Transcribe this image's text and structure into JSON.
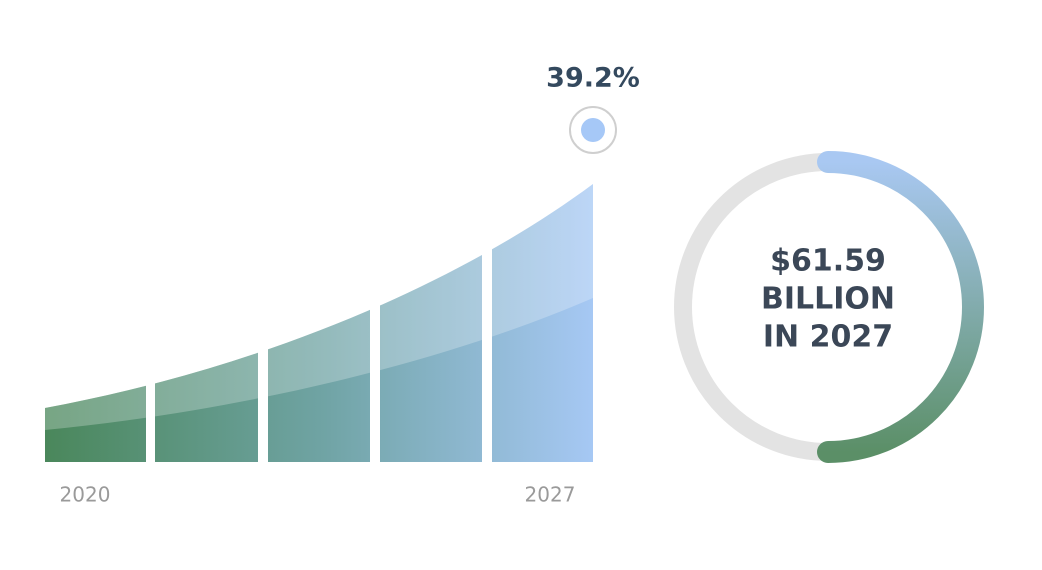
{
  "growth": {
    "rate": "39.2%",
    "start_year": "2020",
    "end_year": "2027"
  },
  "market": {
    "lines": [
      "$61.59",
      "BILLION",
      "IN 2027"
    ]
  }
}
